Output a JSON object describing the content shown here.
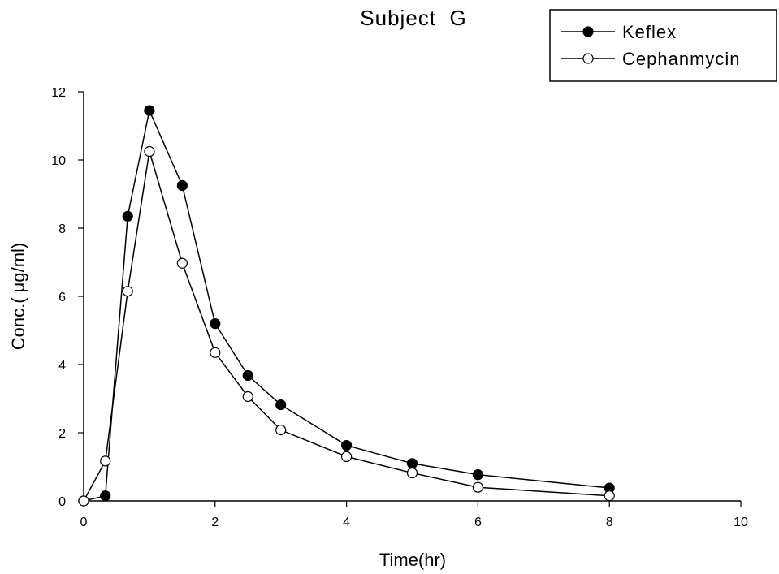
{
  "chart_data": {
    "type": "line",
    "title": "Subject  G",
    "xlabel": "Time(hr)",
    "ylabel": "Conc.( μg/ml)",
    "xlim": [
      0,
      10
    ],
    "ylim": [
      0,
      12
    ],
    "xticks": [
      0,
      2,
      4,
      6,
      8,
      10
    ],
    "yticks": [
      0,
      2,
      4,
      6,
      8,
      10,
      12
    ],
    "grid": false,
    "legend_position": "top-right",
    "series": [
      {
        "name": "Keflex",
        "marker": "filled-circle",
        "color": "#000000",
        "x": [
          0,
          0.33,
          0.67,
          1.0,
          1.5,
          2.0,
          2.5,
          3.0,
          4.0,
          5.0,
          6.0,
          8.0
        ],
        "y": [
          0.0,
          0.15,
          8.35,
          11.45,
          9.25,
          5.2,
          3.68,
          2.82,
          1.63,
          1.1,
          0.77,
          0.38
        ]
      },
      {
        "name": "Cephanmycin",
        "marker": "open-circle",
        "color": "#000000",
        "x": [
          0,
          0.33,
          0.67,
          1.0,
          1.5,
          2.0,
          2.5,
          3.0,
          4.0,
          5.0,
          6.0,
          8.0
        ],
        "y": [
          0.0,
          1.17,
          6.15,
          10.25,
          6.97,
          4.35,
          3.06,
          2.08,
          1.3,
          0.82,
          0.4,
          0.15
        ]
      }
    ]
  }
}
